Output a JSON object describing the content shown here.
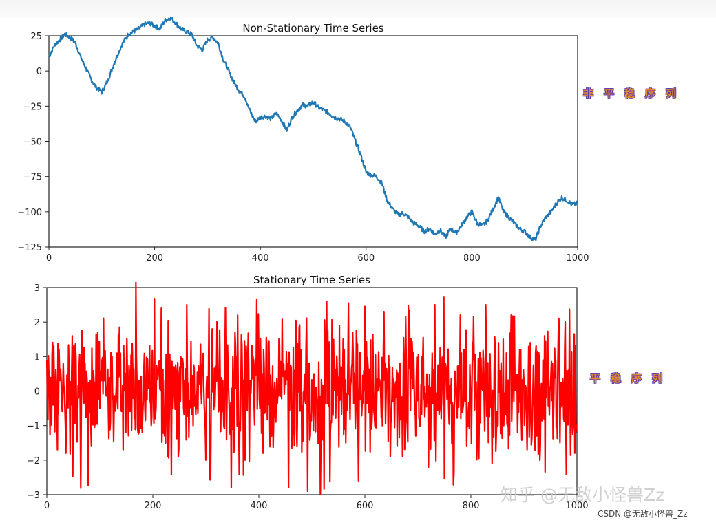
{
  "side_labels": {
    "non_stationary": "非平稳序列",
    "stationary": "平稳序列"
  },
  "watermark": "知乎 @无敌小怪兽Zz",
  "footer": "CSDN @无敌小怪兽_Zz",
  "chart_data": [
    {
      "type": "line",
      "title": "Non-Stationary Time Series",
      "xlabel": "",
      "ylabel": "",
      "xlim": [
        0,
        1000
      ],
      "ylim": [
        -125,
        25
      ],
      "xticks": [
        0,
        200,
        400,
        600,
        800,
        1000
      ],
      "yticks": [
        25,
        0,
        -25,
        -50,
        -75,
        -100,
        -125
      ],
      "color": "#1f77b4",
      "grid": false,
      "series": [
        {
          "x": [
            0,
            10,
            20,
            30,
            40,
            50,
            60,
            70,
            80,
            90,
            100,
            110,
            120,
            130,
            140,
            150,
            160,
            170,
            180,
            190,
            200,
            210,
            220,
            230,
            240,
            250,
            260,
            270,
            280,
            290,
            300,
            310,
            320,
            330,
            340,
            350,
            360,
            370,
            380,
            390,
            400,
            410,
            420,
            430,
            440,
            450,
            460,
            470,
            480,
            490,
            500,
            510,
            520,
            530,
            540,
            550,
            560,
            570,
            580,
            590,
            600,
            610,
            620,
            630,
            640,
            650,
            660,
            670,
            680,
            690,
            700,
            710,
            720,
            730,
            740,
            750,
            760,
            770,
            780,
            790,
            800,
            810,
            820,
            830,
            840,
            850,
            860,
            870,
            880,
            890,
            900,
            910,
            920,
            930,
            940,
            950,
            960,
            970,
            980,
            990,
            1000
          ],
          "y": [
            10,
            18,
            22,
            26,
            24,
            20,
            10,
            2,
            -6,
            -12,
            -15,
            -8,
            2,
            12,
            20,
            26,
            28,
            30,
            33,
            34,
            32,
            30,
            36,
            38,
            34,
            30,
            28,
            26,
            18,
            15,
            22,
            24,
            20,
            8,
            0,
            -8,
            -14,
            -18,
            -28,
            -36,
            -33,
            -32,
            -34,
            -30,
            -35,
            -42,
            -33,
            -28,
            -24,
            -25,
            -22,
            -26,
            -28,
            -30,
            -33,
            -34,
            -36,
            -40,
            -50,
            -60,
            -72,
            -74,
            -75,
            -80,
            -92,
            -98,
            -102,
            -101,
            -104,
            -108,
            -110,
            -114,
            -112,
            -116,
            -113,
            -118,
            -112,
            -115,
            -110,
            -104,
            -100,
            -108,
            -110,
            -106,
            -98,
            -90,
            -100,
            -104,
            -108,
            -112,
            -114,
            -118,
            -120,
            -110,
            -104,
            -100,
            -94,
            -90,
            -92,
            -95,
            -94
          ]
        }
      ]
    },
    {
      "type": "line",
      "title": "Stationary Time Series",
      "xlabel": "",
      "ylabel": "",
      "xlim": [
        0,
        1000
      ],
      "ylim": [
        -3,
        3
      ],
      "xticks": [
        0,
        200,
        400,
        600,
        800,
        1000
      ],
      "yticks": [
        3,
        2,
        1,
        0,
        -1,
        -2,
        -3
      ],
      "color": "#ff0000",
      "grid": false,
      "series": [
        {
          "n": 1000,
          "y_sample": [
            0.9,
            -0.4,
            0.6,
            -1.8,
            1.6,
            -0.2,
            0.8,
            -1.6,
            1.7,
            0.3,
            -0.9,
            1.1,
            -1.7,
            0.5,
            3.15,
            -1.2,
            0.4,
            -0.8,
            2.4,
            -1.9,
            0.7,
            -0.3,
            2.5,
            -1.0,
            0.2,
            -2.0,
            1.8,
            -0.6,
            0.9,
            -2.8,
            2.2,
            -1.4,
            0.3,
            2.65,
            -1.8,
            0.1,
            -0.9,
            2.1,
            -2.8,
            0.6,
            1.2,
            -2.9,
            0.5,
            -3.0,
            2.6,
            -0.7,
            1.9,
            -1.5,
            0.8,
            -2.6,
            2.45,
            -1.1,
            0.0,
            2.3,
            -1.9,
            0.6,
            -0.4,
            2.35,
            -1.3,
            1.0,
            -2.2,
            2.5,
            -0.8,
            0.4,
            -2.4,
            2.2,
            -1.6,
            0.9,
            -0.2,
            2.5,
            -2.1,
            1.4,
            -0.5,
            2.2,
            -1.2,
            0.3,
            1.4,
            -1.3,
            0.9,
            -0.7
          ]
        }
      ]
    }
  ]
}
